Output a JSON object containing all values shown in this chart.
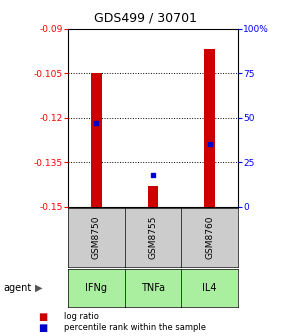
{
  "title": "GDS499 / 30701",
  "samples": [
    "GSM8750",
    "GSM8755",
    "GSM8760"
  ],
  "agents": [
    "IFNg",
    "TNFa",
    "IL4"
  ],
  "log_ratio_values": [
    -0.105,
    -0.143,
    -0.097
  ],
  "log_ratio_baseline": -0.15,
  "percentile_values": [
    47,
    18,
    35
  ],
  "ylim_left": [
    -0.15,
    -0.09
  ],
  "ylim_right": [
    0,
    100
  ],
  "yticks_left": [
    -0.15,
    -0.135,
    -0.12,
    -0.105,
    -0.09
  ],
  "yticks_right": [
    0,
    25,
    50,
    75,
    100
  ],
  "ytick_labels_right": [
    "0",
    "25",
    "50",
    "75",
    "100%"
  ],
  "bar_color": "#cc0000",
  "marker_color": "#0000cc",
  "agent_bg_color": "#aaeea0",
  "sample_bg_color": "#cccccc",
  "legend_log_ratio_label": "log ratio",
  "legend_percentile_label": "percentile rank within the sample",
  "agent_label": "agent",
  "bar_width": 0.18
}
